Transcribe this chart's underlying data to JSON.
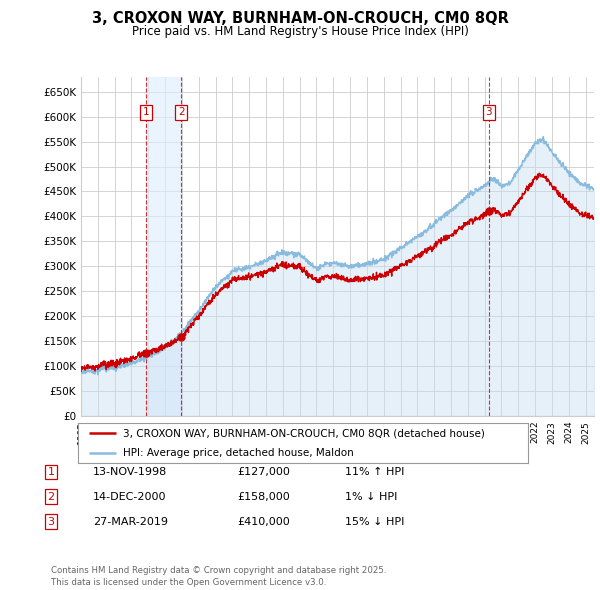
{
  "title": "3, CROXON WAY, BURNHAM-ON-CROUCH, CM0 8QR",
  "subtitle": "Price paid vs. HM Land Registry's House Price Index (HPI)",
  "xlim": [
    1995.0,
    2025.5
  ],
  "ylim": [
    0,
    680000
  ],
  "yticks": [
    0,
    50000,
    100000,
    150000,
    200000,
    250000,
    300000,
    350000,
    400000,
    450000,
    500000,
    550000,
    600000,
    650000
  ],
  "ytick_labels": [
    "£0",
    "£50K",
    "£100K",
    "£150K",
    "£200K",
    "£250K",
    "£300K",
    "£350K",
    "£400K",
    "£450K",
    "£500K",
    "£550K",
    "£600K",
    "£650K"
  ],
  "transactions": [
    {
      "num": 1,
      "date": "13-NOV-1998",
      "year": 1998.87,
      "price": 127000,
      "hpi_diff": "11% ↑ HPI"
    },
    {
      "num": 2,
      "date": "14-DEC-2000",
      "year": 2000.96,
      "price": 158000,
      "hpi_diff": "1% ↓ HPI"
    },
    {
      "num": 3,
      "date": "27-MAR-2019",
      "year": 2019.24,
      "price": 410000,
      "hpi_diff": "15% ↓ HPI"
    }
  ],
  "hpi_color": "#88bbdd",
  "hpi_fill_color": "#c8dff0",
  "price_color": "#cc0000",
  "marker_color": "#cc0000",
  "transaction_line_color": "#cc0000",
  "transaction_fill_color": "#ddeeff",
  "bg_color": "#ffffff",
  "grid_color": "#cccccc",
  "footer": "Contains HM Land Registry data © Crown copyright and database right 2025.\nThis data is licensed under the Open Government Licence v3.0.",
  "legend_label_price": "3, CROXON WAY, BURNHAM-ON-CROUCH, CM0 8QR (detached house)",
  "legend_label_hpi": "HPI: Average price, detached house, Maldon"
}
